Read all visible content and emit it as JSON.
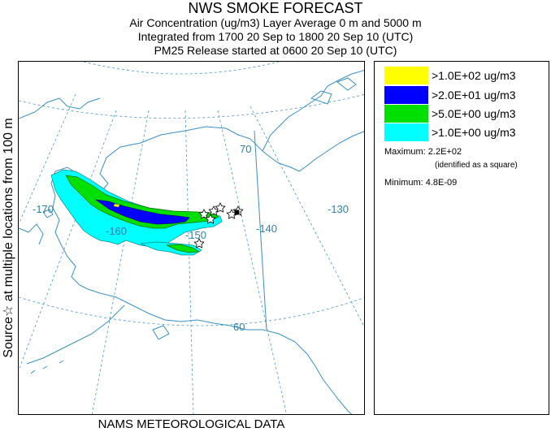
{
  "header": {
    "title": "NWS SMOKE FORECAST",
    "line2": "Air Concentration (ug/m3) Layer Average    0 m and  5000 m",
    "line3": "Integrated from 1700 20 Sep to 1800 20 Sep 10 (UTC)",
    "line4": "PM25 Release started at 0600 20 Sep 10 (UTC)"
  },
  "side_label": "Source☆ at multiple locations  from  100 m",
  "footer": "NAMS METEOROLOGICAL DATA",
  "map": {
    "lon_labels": [
      "-170",
      "-160",
      "-150",
      "-140",
      "-130"
    ],
    "lat_labels": [
      "70",
      "60"
    ],
    "colors": {
      "land": "#ffffff",
      "coast": "#3b8fc3",
      "grid": "#4a97c9",
      "yellow": "#ffff00",
      "blue": "#0000ff",
      "green": "#00e000",
      "cyan": "#00ffff"
    },
    "source_marker": "star-icon"
  },
  "legend": {
    "items": [
      {
        "label": ">1.0E+02 ug/m3",
        "color": "#ffff00"
      },
      {
        "label": ">2.0E+01 ug/m3",
        "color": "#0000ff"
      },
      {
        "label": ">5.0E+00 ug/m3",
        "color": "#00e000"
      },
      {
        "label": ">1.0E+00 ug/m3",
        "color": "#00ffff"
      }
    ],
    "maximum": "Maximum: 2.2E+02",
    "maximum_note": "(identified as a square)",
    "minimum": "Minimum: 4.8E-09"
  }
}
